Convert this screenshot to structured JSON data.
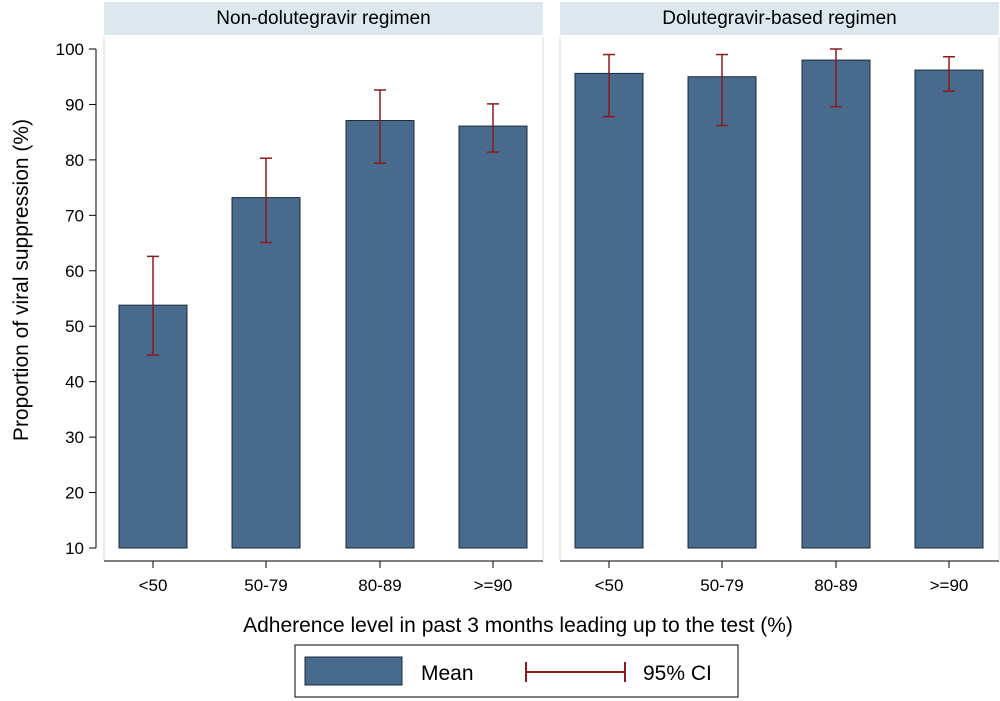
{
  "chart_data": {
    "type": "bar",
    "ylabel": "Proportion of viral suppression (%)",
    "xlabel": "Adherence level in past 3 months leading up to the test (%)",
    "ylim": [
      10,
      100
    ],
    "yticks": [
      10,
      20,
      30,
      40,
      50,
      60,
      70,
      80,
      90,
      100
    ],
    "ytick_labels": [
      "10",
      "20",
      "30",
      "40",
      "50",
      "60",
      "70",
      "80",
      "90",
      "100"
    ],
    "categories": [
      "<50",
      "50-79",
      "80-89",
      ">=90"
    ],
    "grid": false,
    "legend": {
      "position": "bottom",
      "mean_label": "Mean",
      "ci_label": "95% CI"
    },
    "colors": {
      "bar_fill": "#486b8d",
      "bar_edge": "#1a2a3a",
      "ci": "#8b1a1a",
      "panel_header": "#dde8ee",
      "panel_border": "#d9d9d9"
    },
    "panels": [
      {
        "title": "Non-dolutegravir regimen",
        "values": [
          53.8,
          73.2,
          87.1,
          86.1
        ],
        "ci_low": [
          44.8,
          65.1,
          79.4,
          81.4
        ],
        "ci_high": [
          62.6,
          80.3,
          92.6,
          90.1
        ]
      },
      {
        "title": "Dolutegravir-based regimen",
        "values": [
          95.6,
          95.0,
          98.0,
          96.2
        ],
        "ci_low": [
          87.8,
          86.2,
          89.6,
          92.4
        ],
        "ci_high": [
          99.0,
          99.0,
          100.0,
          98.6
        ]
      }
    ]
  }
}
